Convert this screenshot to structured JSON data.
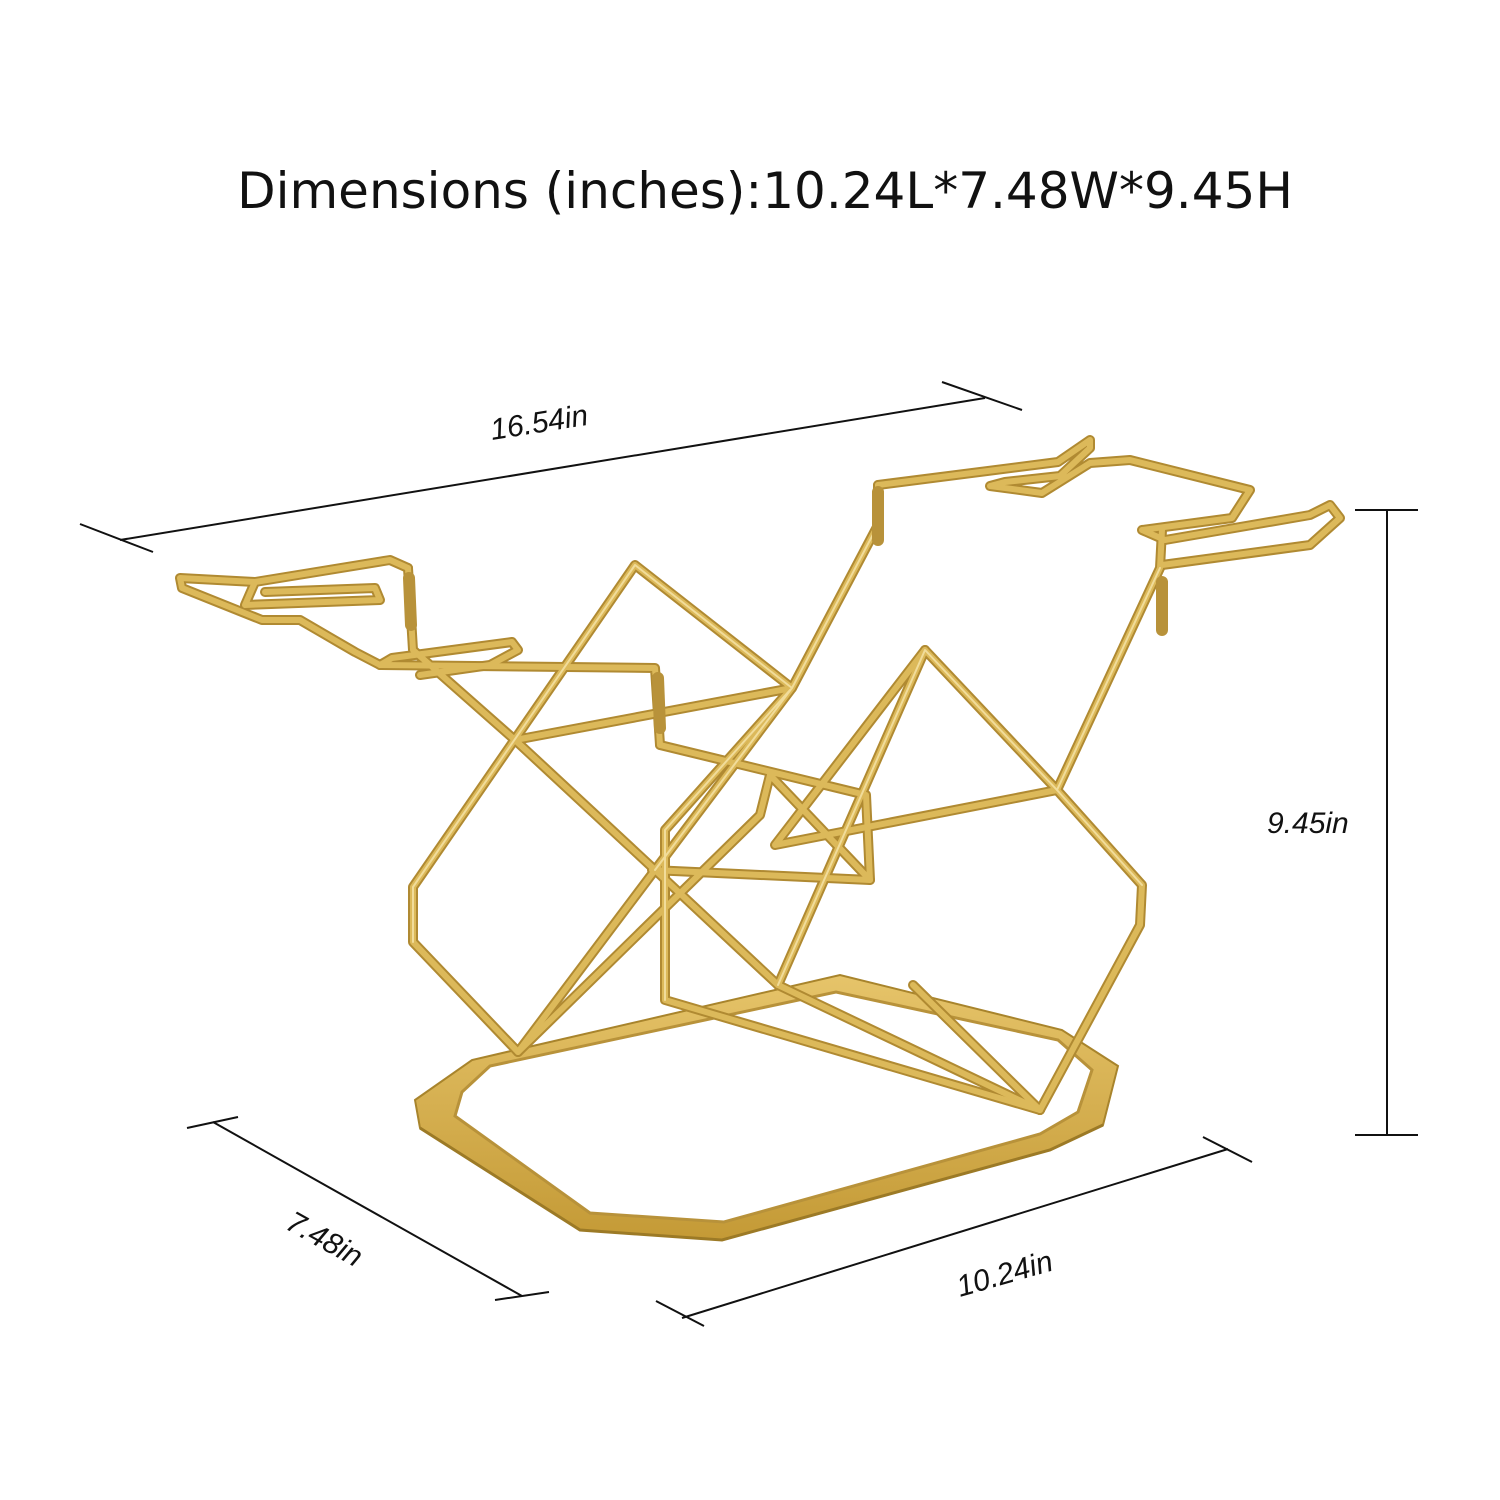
{
  "title": "Dimensions (inches):10.24L*7.48W*9.45H",
  "dimensions": {
    "overall_length": "16.54in",
    "height": "9.45in",
    "width": "7.48in",
    "base_length": "10.24in"
  },
  "product": {
    "illustration": "gold-wire-wine-glass-rack",
    "frame_color": "#d2ae4e",
    "frame_highlight": "#e9cf80",
    "frame_shadow": "#a8842c"
  },
  "colors": {
    "background": "#ffffff",
    "text": "#111111",
    "dimension_lines": "#111111"
  }
}
